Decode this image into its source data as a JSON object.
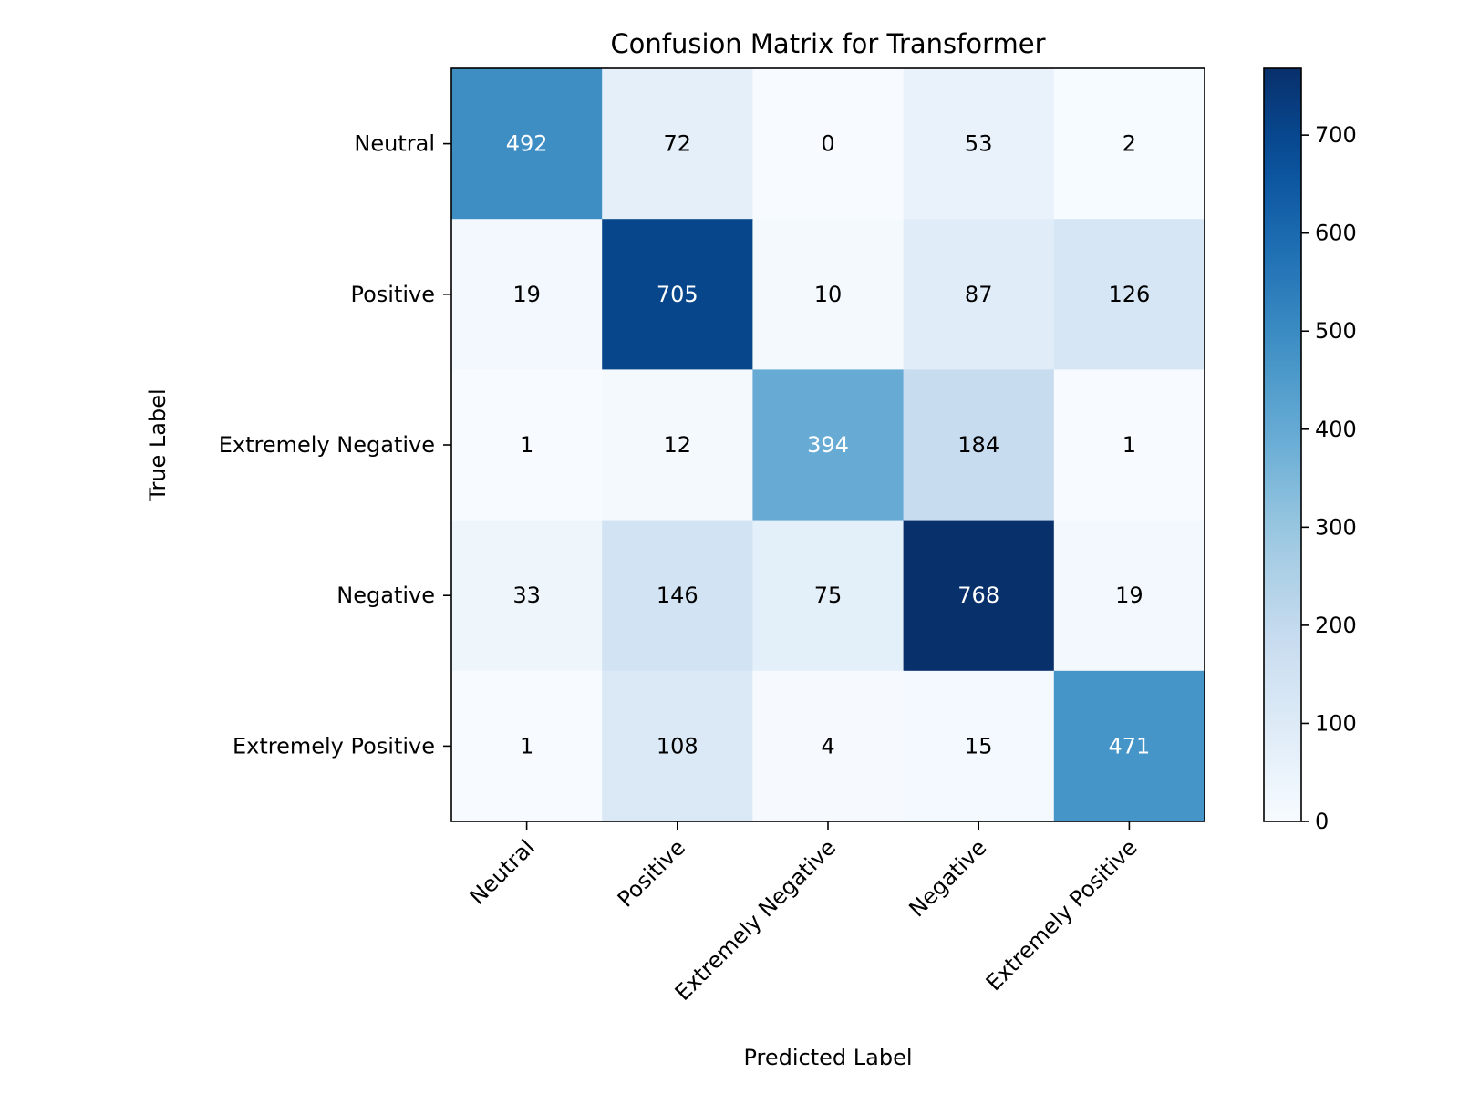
{
  "chart_data": {
    "type": "heatmap",
    "title": "Confusion Matrix for Transformer",
    "xlabel": "Predicted Label",
    "ylabel": "True Label",
    "x_categories": [
      "Neutral",
      "Positive",
      "Extremely Negative",
      "Negative",
      "Extremely Positive"
    ],
    "y_categories": [
      "Neutral",
      "Positive",
      "Extremely Negative",
      "Negative",
      "Extremely Positive"
    ],
    "values": [
      [
        492,
        72,
        0,
        53,
        2
      ],
      [
        19,
        705,
        10,
        87,
        126
      ],
      [
        1,
        12,
        394,
        184,
        1
      ],
      [
        33,
        146,
        75,
        768,
        19
      ],
      [
        1,
        108,
        4,
        15,
        471
      ]
    ],
    "colorbar": {
      "colormap": "Blues",
      "range": [
        0,
        768
      ],
      "ticks": [
        0,
        100,
        200,
        300,
        400,
        500,
        600,
        700
      ]
    },
    "text_colors": {
      "light": "#ffffff",
      "dark": "#000000"
    },
    "grid": false
  }
}
